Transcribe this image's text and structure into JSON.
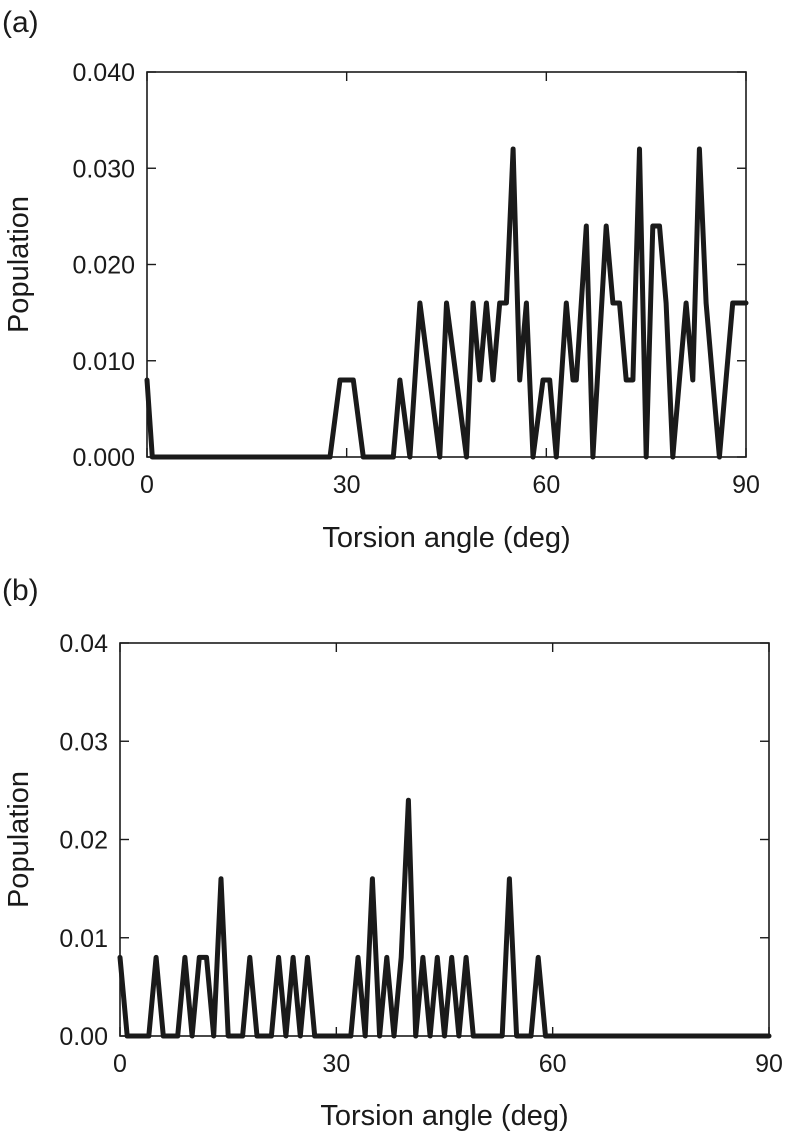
{
  "chart_data": [
    {
      "panel": "(a)",
      "type": "line",
      "xlabel": "Torsion angle (deg)",
      "ylabel": "Population",
      "xlim": [
        0,
        90
      ],
      "ylim": [
        0,
        0.04
      ],
      "xticks": [
        "0",
        "30",
        "60",
        "90"
      ],
      "yticks": [
        "0.000",
        "0.010",
        "0.020",
        "0.030",
        "0.040"
      ],
      "grid": false,
      "series": [
        {
          "x": [
            0,
            0.8,
            1.5,
            27.5,
            29,
            31,
            32.5,
            37,
            38,
            39.5,
            41,
            42.5,
            44,
            45,
            46.5,
            48,
            49,
            50,
            51,
            52,
            53,
            54,
            55,
            56,
            57,
            58,
            59.5,
            60,
            60.5,
            61.5,
            63,
            64,
            64.5,
            66,
            67,
            69,
            70,
            71,
            72,
            73,
            74,
            75,
            76,
            77,
            78,
            79,
            80,
            81,
            82,
            83,
            84,
            85,
            86,
            87,
            88,
            89,
            90
          ],
          "y": [
            0.008,
            0.0,
            0.0,
            0.0,
            0.008,
            0.008,
            0.0,
            0.0,
            0.008,
            0.0,
            0.016,
            0.008,
            0.0,
            0.016,
            0.008,
            0.0,
            0.016,
            0.008,
            0.016,
            0.008,
            0.016,
            0.016,
            0.032,
            0.008,
            0.016,
            0.0,
            0.008,
            0.008,
            0.008,
            0.0,
            0.016,
            0.008,
            0.008,
            0.024,
            0.0,
            0.024,
            0.016,
            0.016,
            0.008,
            0.008,
            0.032,
            0.0,
            0.024,
            0.024,
            0.016,
            0.0,
            0.008,
            0.016,
            0.008,
            0.032,
            0.016,
            0.008,
            0.0,
            0.008,
            0.016,
            0.016,
            0.016
          ]
        }
      ]
    },
    {
      "panel": "(b)",
      "type": "line",
      "xlabel": "Torsion angle (deg)",
      "ylabel": "Population",
      "xlim": [
        0,
        90
      ],
      "ylim": [
        0,
        0.04
      ],
      "xticks": [
        "0",
        "30",
        "60",
        "90"
      ],
      "yticks": [
        "0.00",
        "0.01",
        "0.02",
        "0.03",
        "0.04"
      ],
      "grid": false,
      "series": [
        {
          "x": [
            0,
            1,
            4,
            5,
            6,
            8,
            9,
            10,
            11,
            12,
            13,
            14,
            15,
            17,
            18,
            19,
            21,
            22,
            23,
            24,
            25,
            26,
            27,
            28,
            32,
            33,
            34,
            35,
            36,
            37,
            38,
            39,
            40,
            41,
            42,
            43,
            44,
            45,
            46,
            47,
            48,
            49,
            53,
            54,
            55,
            57,
            58,
            59,
            90
          ],
          "y": [
            0.008,
            0.0,
            0.0,
            0.008,
            0.0,
            0.0,
            0.008,
            0.0,
            0.008,
            0.008,
            0.0,
            0.016,
            0.0,
            0.0,
            0.008,
            0.0,
            0.0,
            0.008,
            0.0,
            0.008,
            0.0,
            0.008,
            0.0,
            0.0,
            0.0,
            0.008,
            0.0,
            0.016,
            0.0,
            0.008,
            0.0,
            0.008,
            0.024,
            0.0,
            0.008,
            0.0,
            0.008,
            0.0,
            0.008,
            0.0,
            0.008,
            0.0,
            0.0,
            0.016,
            0.0,
            0.0,
            0.008,
            0.0,
            0.0
          ]
        }
      ]
    }
  ]
}
